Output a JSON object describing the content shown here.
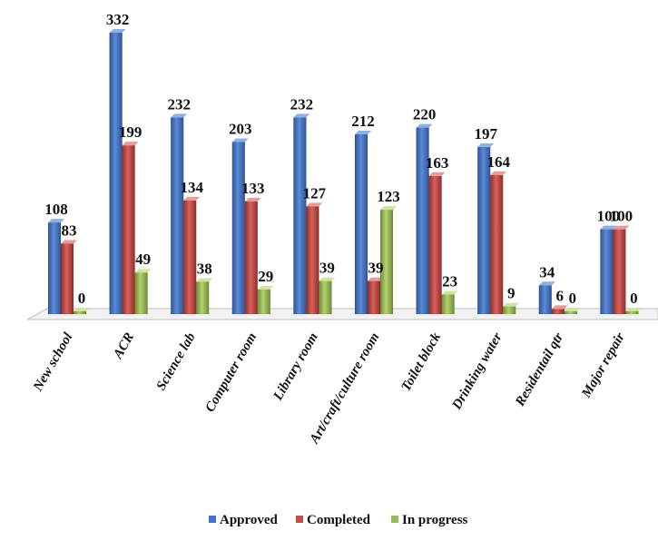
{
  "chart_data": {
    "type": "bar",
    "style": "3d-clustered-column",
    "categories": [
      "New school",
      "ACR",
      "Science lab",
      "Computer room",
      "Library room",
      "Art/craft/culture room",
      "Toilet block",
      "Drinking water",
      "Residentail qtr",
      "Major repair"
    ],
    "series": [
      {
        "name": "Approved",
        "color": "#4472C4",
        "values": [
          108,
          332,
          232,
          203,
          232,
          212,
          220,
          197,
          34,
          100
        ]
      },
      {
        "name": "Completed",
        "color": "#C0504D",
        "values": [
          83,
          199,
          134,
          133,
          127,
          39,
          163,
          164,
          6,
          100
        ]
      },
      {
        "name": "In progress",
        "color": "#9BBB59",
        "values": [
          0,
          49,
          38,
          29,
          39,
          123,
          23,
          9,
          0,
          0
        ]
      }
    ],
    "title": "",
    "xlabel": "",
    "ylabel": "",
    "ylim": [
      0,
      340
    ],
    "grid": false,
    "legend_position": "bottom"
  }
}
